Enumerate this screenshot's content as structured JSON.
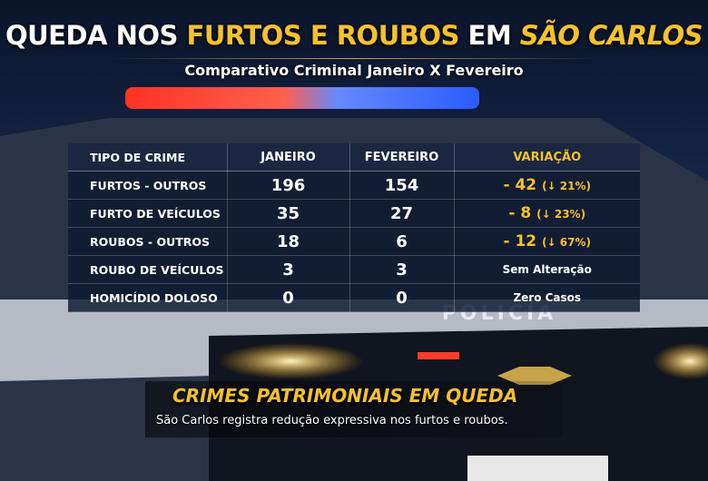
{
  "header": {
    "title": {
      "part1": "QUEDA NOS",
      "part2": "FURTOS E ROUBOS",
      "part3": "EM",
      "part4": "SÃO CARLOS"
    },
    "subtitle": "Comparativo Criminal Janeiro X Fevereiro"
  },
  "table": {
    "columns": [
      "TIPO DE CRIME",
      "JANEIRO",
      "FEVEREIRO",
      "VARIAÇÃO"
    ],
    "rows": [
      {
        "crime": "FURTOS - OUTROS",
        "january": 196,
        "february": 154,
        "change": "- 42",
        "percent": "(↓ 21%)"
      },
      {
        "crime": "FURTO DE VEÍCULOS",
        "january": 35,
        "february": 27,
        "change": "- 8",
        "percent": "(↓ 23%)"
      },
      {
        "crime": "ROUBOS - OUTROS",
        "january": 18,
        "february": 6,
        "change": "- 12",
        "percent": "(↓ 67%)"
      },
      {
        "crime": "ROUBO DE VEÍCULOS",
        "january": 3,
        "february": 3,
        "note": "Sem Alteração"
      },
      {
        "crime": "HOMICÍDIO DOLOSO",
        "january": 0,
        "february": 0,
        "note": "Zero Casos"
      }
    ]
  },
  "scene": {
    "car_label": "POLICIA"
  },
  "footer": {
    "headline": "CRIMES PATRIMONIAIS EM QUEDA",
    "text": "São Carlos registra redução expressiva nos furtos e roubos."
  }
}
